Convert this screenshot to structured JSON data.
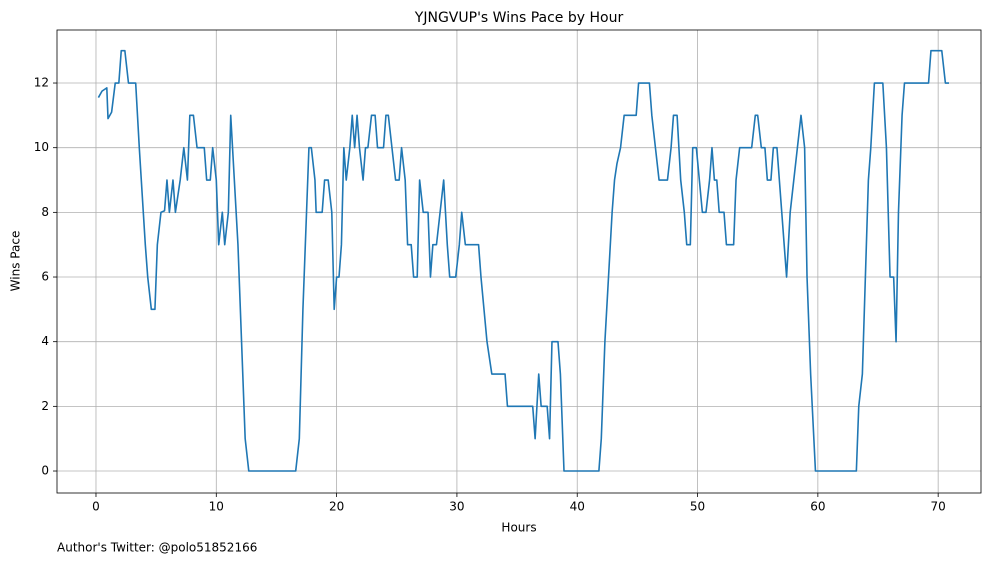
{
  "chart_data": {
    "type": "line",
    "title": "YJNGVUP's Wins Pace by Hour",
    "xlabel": "Hours",
    "ylabel": "Wins Pace",
    "footnote": "Author's Twitter: @polo51852166",
    "color": "#1f77b4",
    "grid": true,
    "xlim": [
      -3.24,
      73.56
    ],
    "ylim": [
      -0.68,
      13.64
    ],
    "xticks": [
      0,
      10,
      20,
      30,
      40,
      50,
      60,
      70
    ],
    "yticks": [
      0,
      2,
      4,
      6,
      8,
      10,
      12
    ],
    "x": [
      0.2,
      0.5,
      0.9,
      1.0,
      1.3,
      1.6,
      1.9,
      2.1,
      2.4,
      2.7,
      3.3,
      3.6,
      4.1,
      4.3,
      4.6,
      4.9,
      5.1,
      5.4,
      5.7,
      5.9,
      6.1,
      6.4,
      6.6,
      7.0,
      7.3,
      7.6,
      7.8,
      8.1,
      8.4,
      9.0,
      9.2,
      9.5,
      9.7,
      10.0,
      10.2,
      10.5,
      10.7,
      11.0,
      11.2,
      11.5,
      11.8,
      12.1,
      12.4,
      12.7,
      16.6,
      16.9,
      17.2,
      17.5,
      17.7,
      17.9,
      18.2,
      18.3,
      18.8,
      19.0,
      19.3,
      19.6,
      19.8,
      20.0,
      20.2,
      20.4,
      20.6,
      20.8,
      21.1,
      21.3,
      21.5,
      21.7,
      21.9,
      22.2,
      22.4,
      22.6,
      22.9,
      23.2,
      23.4,
      23.9,
      24.1,
      24.3,
      24.6,
      24.9,
      25.2,
      25.4,
      25.7,
      25.9,
      26.2,
      26.4,
      26.7,
      26.9,
      27.2,
      27.6,
      27.8,
      28.0,
      28.3,
      28.6,
      28.9,
      29.2,
      29.4,
      29.9,
      30.2,
      30.4,
      30.7,
      31.8,
      32.0,
      32.5,
      32.9,
      34.0,
      34.2,
      36.3,
      36.5,
      36.8,
      37.0,
      37.5,
      37.7,
      37.9,
      38.4,
      38.6,
      38.9,
      41.8,
      42.0,
      42.3,
      42.6,
      42.9,
      43.1,
      43.3,
      43.6,
      43.9,
      44.9,
      45.1,
      46.0,
      46.2,
      46.5,
      46.8,
      47.5,
      47.8,
      48.0,
      48.3,
      48.6,
      48.9,
      49.1,
      49.4,
      49.6,
      49.9,
      50.4,
      50.7,
      51.0,
      51.2,
      51.4,
      51.6,
      51.8,
      52.2,
      52.4,
      53.0,
      53.2,
      53.5,
      54.5,
      54.8,
      55.0,
      55.3,
      55.6,
      55.8,
      56.1,
      56.3,
      56.6,
      57.0,
      57.4,
      57.7,
      58.0,
      58.3,
      58.6,
      58.9,
      59.1,
      59.4,
      59.8,
      63.2,
      63.4,
      63.7,
      64.2,
      64.4,
      64.7,
      65.4,
      65.7,
      66.0,
      66.3,
      66.5,
      66.7,
      67.0,
      67.2,
      69.2,
      69.4,
      70.3,
      70.6,
      70.9
    ],
    "values": [
      11.55,
      11.75,
      11.85,
      10.9,
      11.1,
      12,
      12,
      13,
      13,
      12,
      12,
      10,
      7,
      6,
      5,
      5,
      7,
      8,
      8.05,
      9,
      8,
      9,
      8,
      9,
      10,
      9,
      11,
      11,
      10,
      10,
      9,
      9,
      10,
      9,
      7,
      8,
      7,
      8,
      11,
      9,
      7,
      4,
      1,
      0,
      0,
      1,
      5,
      8,
      10,
      10,
      9,
      8,
      8,
      9,
      9,
      8,
      5,
      6,
      6,
      7,
      10,
      9,
      10,
      11,
      10,
      11,
      10,
      9,
      10,
      10,
      11,
      11,
      10,
      10,
      11,
      11,
      10,
      9,
      9,
      10,
      9,
      7,
      7,
      6,
      6,
      9,
      8,
      8,
      6,
      7,
      7,
      8,
      9,
      7,
      6,
      6,
      7,
      8,
      7,
      7,
      6,
      4,
      3,
      3,
      2,
      2,
      1,
      3,
      2,
      2,
      1,
      4,
      4,
      3,
      0,
      0,
      1,
      4,
      6,
      8,
      9,
      9.5,
      10,
      11,
      11,
      12,
      12,
      11,
      10,
      9,
      9,
      10,
      11,
      11,
      9,
      8,
      7,
      7,
      10,
      10,
      8,
      8,
      9,
      10,
      9,
      9,
      8,
      8,
      7,
      7,
      9,
      10,
      10,
      11,
      11,
      10,
      10,
      9,
      9,
      10,
      10,
      8,
      6,
      8,
      9,
      10,
      11,
      10,
      6,
      3,
      0,
      0,
      2,
      3,
      9,
      10,
      12,
      12,
      10,
      6,
      6,
      4,
      8,
      11,
      12,
      12,
      13,
      13,
      12,
      12
    ]
  }
}
